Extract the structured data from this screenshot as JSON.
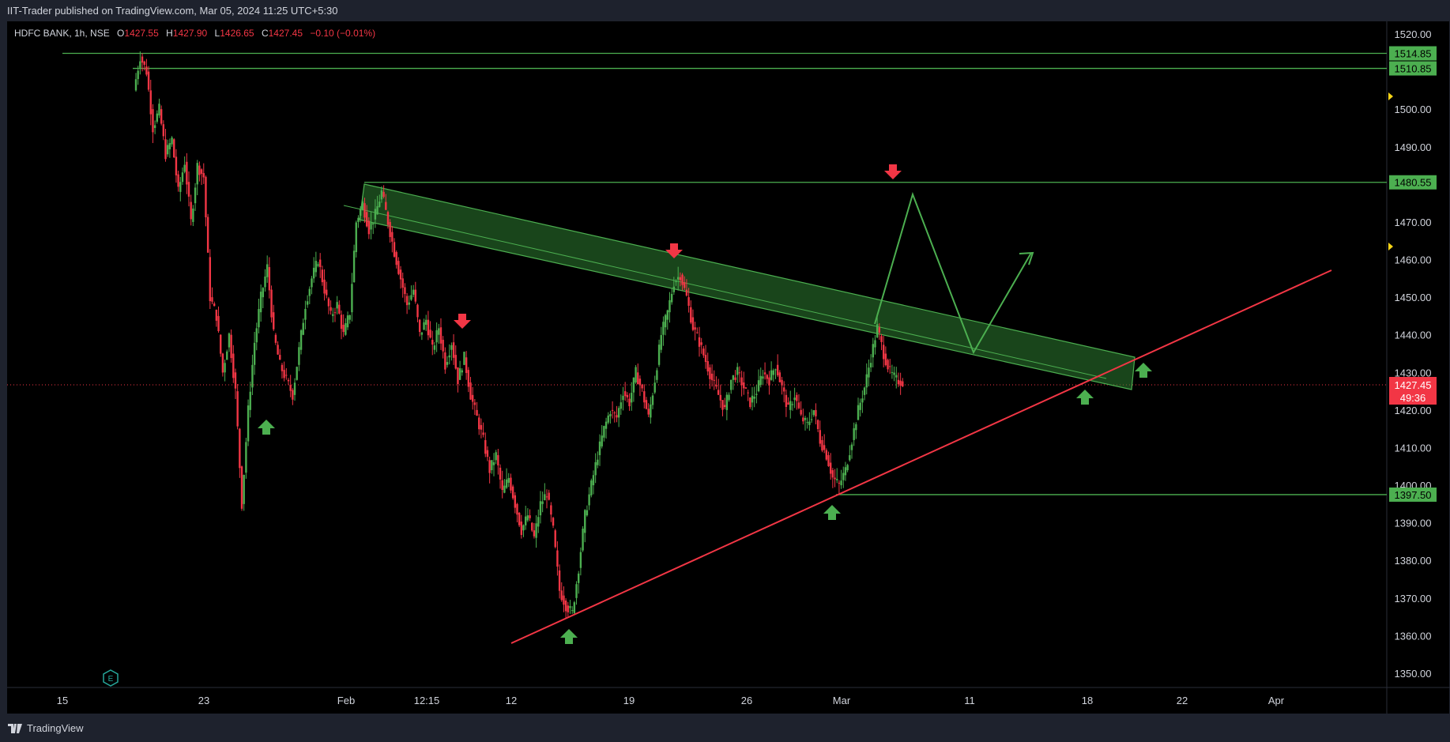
{
  "header": {
    "publish_line": "IIT-Trader published on TradingView.com, Mar 05, 2024 11:25 UTC+5:30"
  },
  "legend": {
    "symbol": "HDFC BANK, 1h, NSE",
    "o_label": "O",
    "o_value": "1427.55",
    "h_label": "H",
    "h_value": "1427.90",
    "l_label": "L",
    "l_value": "1426.65",
    "c_label": "C",
    "c_value": "1427.45",
    "change": "−0.10 (−0.01%)"
  },
  "footer": {
    "brand": "TradingView"
  },
  "colors": {
    "up": "#26a69a",
    "candle_up": "#4caf50",
    "candle_down": "#f23645",
    "level_line": "#4caf50",
    "trend_support": "#f23645",
    "channel_fill": "#2e7d32",
    "axis_text": "#d1d4dc"
  },
  "chart_data": {
    "type": "candlestick",
    "symbol": "HDFC BANK",
    "interval": "1h",
    "exchange": "NSE",
    "ylim": [
      1345,
      1525
    ],
    "y_ticks": [
      "1520.00",
      "1510.00",
      "1500.00",
      "1490.00",
      "1480.00",
      "1470.00",
      "1460.00",
      "1450.00",
      "1440.00",
      "1430.00",
      "1420.00",
      "1410.00",
      "1400.00",
      "1390.00",
      "1380.00",
      "1370.00",
      "1360.00",
      "1350.00"
    ],
    "x_ticks": [
      "15",
      "23",
      "Feb",
      "12:15",
      "12",
      "19",
      "26",
      "Mar",
      "11",
      "18",
      "22",
      "Apr"
    ],
    "horizontal_levels": [
      {
        "label": "1514.85",
        "value": 1514.85
      },
      {
        "label": "1510.85",
        "value": 1510.85
      },
      {
        "label": "1480.55",
        "value": 1480.55
      },
      {
        "label": "1397.50",
        "value": 1397.5
      }
    ],
    "last_price": {
      "value": "1427.45",
      "countdown": "49:36"
    },
    "price_path": [
      1505,
      1514,
      1510,
      1495,
      1500,
      1488,
      1492,
      1478,
      1486,
      1470,
      1485,
      1482,
      1450,
      1445,
      1430,
      1440,
      1425,
      1395,
      1420,
      1438,
      1450,
      1458,
      1440,
      1432,
      1428,
      1424,
      1436,
      1448,
      1455,
      1460,
      1452,
      1445,
      1448,
      1440,
      1446,
      1470,
      1475,
      1468,
      1472,
      1478,
      1470,
      1462,
      1455,
      1448,
      1452,
      1440,
      1444,
      1436,
      1442,
      1432,
      1438,
      1428,
      1434,
      1424,
      1418,
      1412,
      1404,
      1408,
      1398,
      1402,
      1395,
      1388,
      1392,
      1386,
      1395,
      1398,
      1388,
      1372,
      1368,
      1366,
      1378,
      1392,
      1400,
      1408,
      1415,
      1420,
      1418,
      1425,
      1422,
      1430,
      1425,
      1418,
      1428,
      1440,
      1446,
      1454,
      1456,
      1450,
      1442,
      1438,
      1433,
      1428,
      1424,
      1420,
      1428,
      1430,
      1426,
      1422,
      1425,
      1430,
      1428,
      1432,
      1426,
      1420,
      1424,
      1418,
      1416,
      1420,
      1412,
      1408,
      1402,
      1400,
      1404,
      1412,
      1420,
      1426,
      1434,
      1442,
      1435,
      1430,
      1428,
      1427.45
    ]
  }
}
